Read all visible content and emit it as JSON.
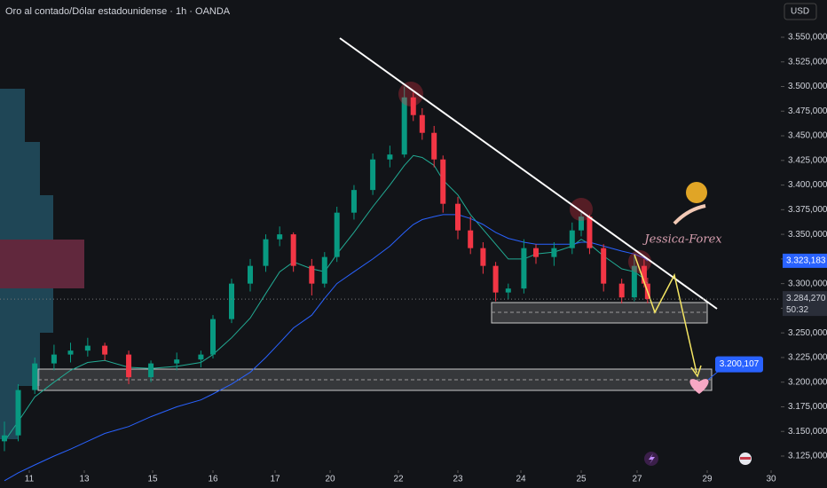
{
  "header": {
    "title": "Oro al contado/Dólar estadounidense · 1h · OANDA",
    "currency": "USD",
    "watermark": "Jessica-Forex"
  },
  "chart_data": {
    "type": "candlestick",
    "x": [
      10.1,
      10.6,
      11.2,
      11.9,
      12.5,
      13.1,
      13.6,
      14.3,
      14.95,
      15.4,
      15.8,
      16.0,
      16.3,
      16.6,
      16.85,
      17.25,
      18,
      19,
      19.7,
      20.2,
      20.7,
      21.25,
      21.75,
      22.1,
      22.25,
      22.4,
      22.6,
      22.75,
      23.0,
      23.2,
      23.4,
      23.6,
      23.8,
      24.05,
      24.25,
      24.55,
      24.85,
      25.0,
      25.3,
      25.8,
      26.45,
      26.9,
      27.2,
      27.3
    ],
    "open": [
      3140,
      3146,
      3192,
      3219,
      3228,
      3232,
      3237,
      3228,
      3205,
      3219,
      3223,
      3228,
      3264,
      3300,
      3318,
      3345,
      3350,
      3318,
      3300,
      3327,
      3372,
      3395,
      3426,
      3431,
      3489,
      3471,
      3453,
      3426,
      3381,
      3354,
      3336,
      3318,
      3291,
      3295,
      3336,
      3327,
      3336,
      3354,
      3368,
      3336,
      3300,
      3286,
      3318,
      3300
    ],
    "high": [
      3160,
      3198,
      3225,
      3238,
      3240,
      3245,
      3240,
      3232,
      3222,
      3230,
      3232,
      3268,
      3305,
      3325,
      3350,
      3358,
      3352,
      3325,
      3332,
      3378,
      3400,
      3432,
      3440,
      3500,
      3494,
      3478,
      3460,
      3430,
      3388,
      3368,
      3342,
      3322,
      3300,
      3345,
      3340,
      3342,
      3362,
      3372,
      3370,
      3340,
      3305,
      3328,
      3325,
      3306
    ],
    "low": [
      3130,
      3140,
      3188,
      3212,
      3220,
      3226,
      3222,
      3198,
      3200,
      3212,
      3215,
      3224,
      3260,
      3292,
      3312,
      3338,
      3312,
      3288,
      3296,
      3322,
      3365,
      3390,
      3418,
      3428,
      3465,
      3446,
      3418,
      3372,
      3345,
      3330,
      3310,
      3282,
      3284,
      3290,
      3320,
      3318,
      3330,
      3348,
      3330,
      3292,
      3280,
      3282,
      3296,
      3280
    ],
    "close": [
      3146,
      3192,
      3219,
      3228,
      3232,
      3237,
      3228,
      3205,
      3219,
      3223,
      3228,
      3264,
      3300,
      3318,
      3345,
      3350,
      3318,
      3300,
      3327,
      3372,
      3395,
      3426,
      3431,
      3489,
      3471,
      3453,
      3426,
      3381,
      3354,
      3336,
      3318,
      3291,
      3295,
      3336,
      3327,
      3336,
      3354,
      3368,
      3336,
      3300,
      3286,
      3318,
      3300,
      3284.27
    ],
    "up_color": "#089981",
    "down_color": "#f23645",
    "lines": [
      {
        "color": "#22ab94",
        "values": [
          3140,
          3160,
          3185,
          3200,
          3212,
          3220,
          3222,
          3215,
          3214,
          3216,
          3220,
          3228,
          3245,
          3265,
          3290,
          3312,
          3322,
          3315,
          3312,
          3330,
          3352,
          3378,
          3400,
          3420,
          3430,
          3428,
          3420,
          3405,
          3390,
          3370,
          3355,
          3340,
          3325,
          3325,
          3330,
          3332,
          3338,
          3345,
          3340,
          3328,
          3315,
          3312,
          3305,
          3300
        ]
      },
      {
        "color": "#2962ff",
        "values": [
          3100,
          3108,
          3116,
          3125,
          3132,
          3140,
          3148,
          3155,
          3165,
          3175,
          3182,
          3188,
          3198,
          3210,
          3225,
          3240,
          3255,
          3268,
          3285,
          3300,
          3312,
          3325,
          3338,
          3352,
          3360,
          3365,
          3368,
          3370,
          3370,
          3366,
          3360,
          3352,
          3346,
          3342,
          3340,
          3340,
          3340,
          3342,
          3342,
          3338,
          3333,
          3330,
          3326,
          3323
        ]
      }
    ],
    "xlim": [
      9.94,
      30.15
    ],
    "xticks": [
      11,
      13,
      15,
      16,
      17,
      20,
      22,
      23,
      24,
      25,
      27,
      29,
      30
    ],
    "ylim": [
      3110.6,
      3587.8
    ],
    "yticks": [
      {
        "value": 3125,
        "label": "3.125,000"
      },
      {
        "value": 3150,
        "label": "3.150,000"
      },
      {
        "value": 3175,
        "label": "3.175,000"
      },
      {
        "value": 3200,
        "label": "3.200,000"
      },
      {
        "value": 3225,
        "label": "3.225,000"
      },
      {
        "value": 3250,
        "label": "3.250,000"
      },
      {
        "value": 3275,
        "label": "3.275,000"
      },
      {
        "value": 3300,
        "label": "3.300,000"
      },
      {
        "value": 3325,
        "label": "3.325,000"
      },
      {
        "value": 3350,
        "label": "3.350,000"
      },
      {
        "value": 3375,
        "label": "3.375,000"
      },
      {
        "value": 3400,
        "label": "3.400,000"
      },
      {
        "value": 3425,
        "label": "3.425,000"
      },
      {
        "value": 3450,
        "label": "3.450,000"
      },
      {
        "value": 3475,
        "label": "3.475,000"
      },
      {
        "value": 3500,
        "label": "3.500,000"
      },
      {
        "value": 3525,
        "label": "3.525,000"
      },
      {
        "value": 3550,
        "label": "3.550,000"
      }
    ],
    "ma_price": {
      "value": 3323.183,
      "label": "3.323,183"
    },
    "last_price": {
      "value": 3284.27,
      "label": "3.284,270"
    },
    "countdown": "50:32",
    "target": {
      "value": 3200.107,
      "label": "3.200,107"
    }
  }
}
